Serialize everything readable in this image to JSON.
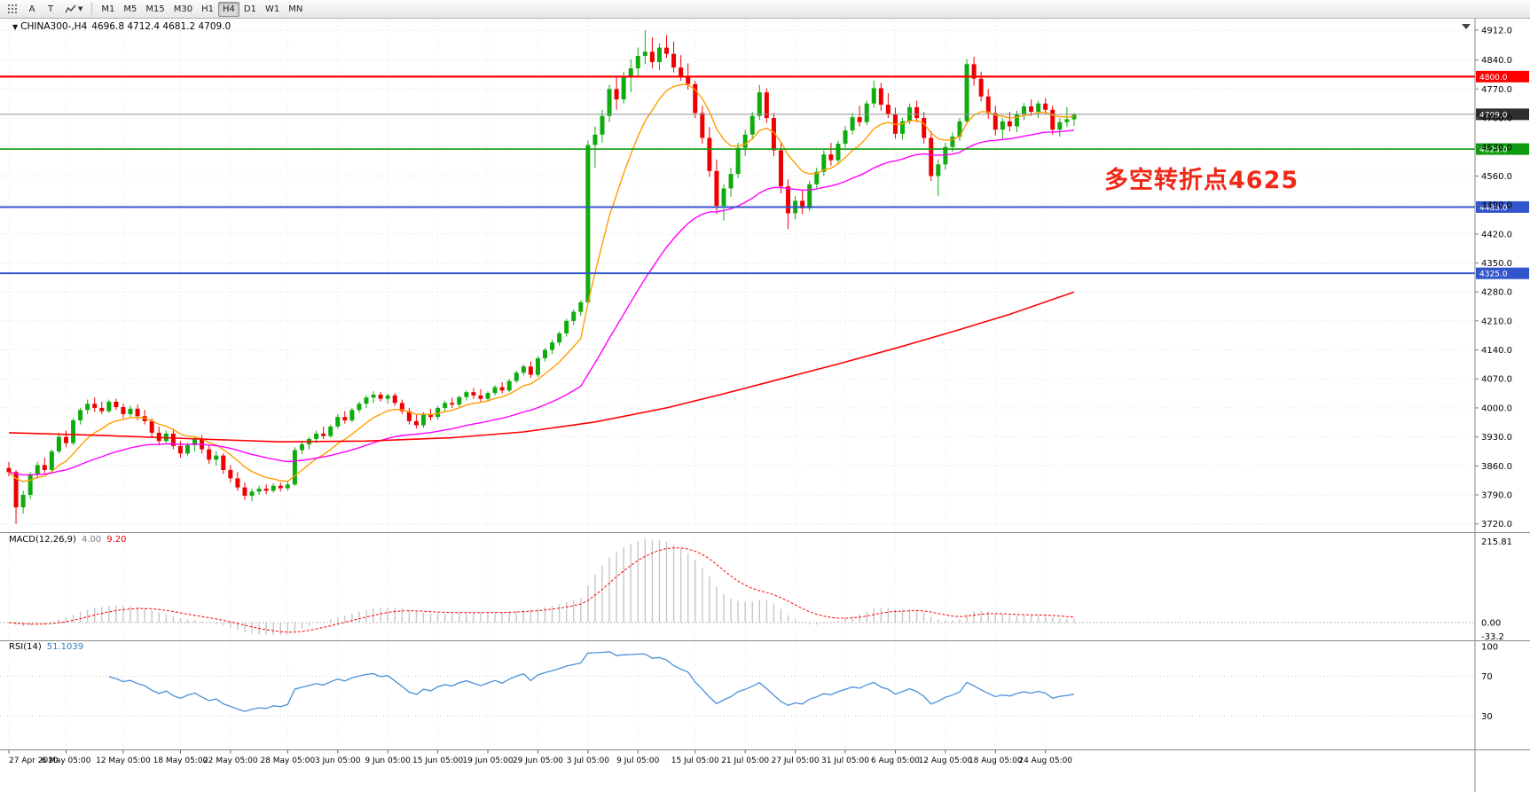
{
  "toolbar": {
    "tools": {
      "pointer_label": "A",
      "text_label": "T"
    },
    "timeframes": [
      "M1",
      "M5",
      "M15",
      "M30",
      "H1",
      "H4",
      "D1",
      "W1",
      "MN"
    ],
    "active_timeframe": "H4"
  },
  "main_chart": {
    "marker": "▼",
    "title": "CHINA300-,H4",
    "ohlc": "4696.8 4712.4 4681.2 4709.0",
    "annotation": {
      "text": "多空转折点4625",
      "color": "#f02818"
    }
  },
  "macd_panel": {
    "label": "MACD(12,26,9)",
    "value_main": "4.00",
    "value_signal": "9.20",
    "axis_top": "215.81",
    "axis_zero": "0.00",
    "axis_bottom": "-33.2"
  },
  "rsi_panel": {
    "label": "RSI(14)",
    "value": "51.1039",
    "axis_labels": [
      "100",
      "70",
      "30"
    ],
    "axis_values": [
      100,
      70,
      30
    ]
  },
  "chart_data": {
    "type": "candlestick",
    "symbol": "CHINA300-",
    "timeframe": "H4",
    "y_max": 4940,
    "y_min": 3700,
    "colors": {
      "up": "#0fab0f",
      "down": "#ee0000",
      "grid": "#dcdcdc",
      "axis_text": "#000000"
    },
    "price_axis_labels": [
      "4912.0",
      "4840.0",
      "4770.0",
      "4700.0",
      "4630.0",
      "4560.0",
      "4490.0",
      "4420.0",
      "4350.0",
      "4280.0",
      "4210.0",
      "4140.0",
      "4070.0",
      "4000.0",
      "3930.0",
      "3860.0",
      "3790.0",
      "3720.0"
    ],
    "levels": [
      {
        "price": 4800.0,
        "label": "4800.0",
        "color": "#ff0000",
        "badge_bg": "#ff0000",
        "width": 2.2
      },
      {
        "price": 4709.0,
        "label": "4709.0",
        "color": "#909090",
        "badge_bg": "#2e2e2e",
        "width": 1
      },
      {
        "price": 4625.0,
        "label": "4625.0",
        "color": "#0f9b0f",
        "badge_bg": "#0f9b0f",
        "width": 1.6
      },
      {
        "price": 4485.0,
        "label": "4485.0",
        "color": "#3355cc",
        "badge_bg": "#3355cc",
        "width": 2
      },
      {
        "price": 4325.0,
        "label": "4325.0",
        "color": "#3355cc",
        "badge_bg": "#3355cc",
        "width": 2
      }
    ],
    "moving_averages": [
      {
        "name": "ma-fast",
        "period": 10,
        "color": "#ff9d00"
      },
      {
        "name": "ma-slow",
        "period": 40,
        "color": "#ff00ff"
      }
    ],
    "trend_line": {
      "color": "#ff0000",
      "anchors": [
        [
          0,
          3940
        ],
        [
          12,
          3934
        ],
        [
          25,
          3926
        ],
        [
          38,
          3918
        ],
        [
          50,
          3920
        ],
        [
          62,
          3928
        ],
        [
          72,
          3942
        ],
        [
          82,
          3966
        ],
        [
          92,
          4000
        ],
        [
          100,
          4034
        ],
        [
          108,
          4070
        ],
        [
          116,
          4106
        ],
        [
          124,
          4144
        ],
        [
          132,
          4184
        ],
        [
          140,
          4226
        ],
        [
          149,
          4280
        ]
      ]
    },
    "macd": {
      "fast": 12,
      "slow": 26,
      "signal": 9,
      "hist_color": "#c6c6c6",
      "signal_color": "#ff0000"
    },
    "rsi": {
      "period": 14,
      "color": "#4a90d9",
      "level_lines": [
        70,
        30
      ]
    },
    "time_ticks": [
      {
        "i": 0,
        "label": "27 Apr 2020"
      },
      {
        "i": 8,
        "label": "6 May 05:00"
      },
      {
        "i": 16,
        "label": "12 May 05:00"
      },
      {
        "i": 24,
        "label": "18 May 05:00"
      },
      {
        "i": 31,
        "label": "22 May 05:00"
      },
      {
        "i": 39,
        "label": "28 May 05:00"
      },
      {
        "i": 46,
        "label": "3 Jun 05:00"
      },
      {
        "i": 53,
        "label": "9 Jun 05:00"
      },
      {
        "i": 60,
        "label": "15 Jun 05:00"
      },
      {
        "i": 67,
        "label": "19 Jun 05:00"
      },
      {
        "i": 74,
        "label": "29 Jun 05:00"
      },
      {
        "i": 81,
        "label": "3 Jul 05:00"
      },
      {
        "i": 88,
        "label": "9 Jul 05:00"
      },
      {
        "i": 96,
        "label": "15 Jul 05:00"
      },
      {
        "i": 103,
        "label": "21 Jul 05:00"
      },
      {
        "i": 110,
        "label": "27 Jul 05:00"
      },
      {
        "i": 117,
        "label": "31 Jul 05:00"
      },
      {
        "i": 124,
        "label": "6 Aug 05:00"
      },
      {
        "i": 131,
        "label": "12 Aug 05:00"
      },
      {
        "i": 138,
        "label": "18 Aug 05:00"
      },
      {
        "i": 145,
        "label": "24 Aug 05:00"
      }
    ],
    "candles": [
      [
        3855,
        3870,
        3835,
        3845
      ],
      [
        3845,
        3850,
        3720,
        3760
      ],
      [
        3760,
        3800,
        3745,
        3790
      ],
      [
        3790,
        3845,
        3780,
        3840
      ],
      [
        3840,
        3870,
        3830,
        3862
      ],
      [
        3862,
        3880,
        3840,
        3850
      ],
      [
        3850,
        3900,
        3845,
        3895
      ],
      [
        3895,
        3940,
        3890,
        3930
      ],
      [
        3930,
        3945,
        3905,
        3915
      ],
      [
        3915,
        3975,
        3910,
        3970
      ],
      [
        3970,
        4000,
        3960,
        3995
      ],
      [
        3995,
        4020,
        3985,
        4010
      ],
      [
        4010,
        4025,
        3990,
        4000
      ],
      [
        4000,
        4015,
        3985,
        3992
      ],
      [
        3992,
        4020,
        3988,
        4015
      ],
      [
        4015,
        4022,
        3995,
        4002
      ],
      [
        4002,
        4010,
        3975,
        3985
      ],
      [
        3985,
        4005,
        3978,
        3998
      ],
      [
        3998,
        4008,
        3970,
        3980
      ],
      [
        3980,
        3995,
        3960,
        3968
      ],
      [
        3968,
        3975,
        3930,
        3940
      ],
      [
        3940,
        3955,
        3910,
        3920
      ],
      [
        3920,
        3945,
        3915,
        3938
      ],
      [
        3938,
        3950,
        3900,
        3908
      ],
      [
        3908,
        3920,
        3880,
        3890
      ],
      [
        3890,
        3915,
        3885,
        3910
      ],
      [
        3910,
        3930,
        3895,
        3925
      ],
      [
        3925,
        3935,
        3890,
        3900
      ],
      [
        3900,
        3910,
        3865,
        3875
      ],
      [
        3875,
        3895,
        3860,
        3885
      ],
      [
        3885,
        3890,
        3840,
        3850
      ],
      [
        3850,
        3862,
        3820,
        3830
      ],
      [
        3830,
        3845,
        3800,
        3808
      ],
      [
        3808,
        3820,
        3778,
        3788
      ],
      [
        3788,
        3805,
        3775,
        3798
      ],
      [
        3798,
        3812,
        3790,
        3805
      ],
      [
        3805,
        3815,
        3792,
        3800
      ],
      [
        3800,
        3818,
        3795,
        3812
      ],
      [
        3812,
        3820,
        3798,
        3806
      ],
      [
        3806,
        3822,
        3800,
        3815
      ],
      [
        3815,
        3905,
        3812,
        3898
      ],
      [
        3898,
        3920,
        3888,
        3912
      ],
      [
        3912,
        3930,
        3900,
        3925
      ],
      [
        3925,
        3945,
        3915,
        3938
      ],
      [
        3938,
        3955,
        3925,
        3932
      ],
      [
        3932,
        3960,
        3928,
        3955
      ],
      [
        3955,
        3985,
        3950,
        3978
      ],
      [
        3978,
        3992,
        3962,
        3970
      ],
      [
        3970,
        4000,
        3965,
        3995
      ],
      [
        3995,
        4015,
        3988,
        4010
      ],
      [
        4010,
        4030,
        4000,
        4025
      ],
      [
        4025,
        4040,
        4012,
        4032
      ],
      [
        4032,
        4038,
        4015,
        4022
      ],
      [
        4022,
        4035,
        4010,
        4030
      ],
      [
        4030,
        4036,
        4005,
        4012
      ],
      [
        4012,
        4020,
        3985,
        3992
      ],
      [
        3992,
        4000,
        3960,
        3968
      ],
      [
        3968,
        3985,
        3950,
        3958
      ],
      [
        3958,
        3990,
        3952,
        3985
      ],
      [
        3985,
        3998,
        3970,
        3978
      ],
      [
        3978,
        4005,
        3972,
        4000
      ],
      [
        4000,
        4018,
        3992,
        4012
      ],
      [
        4012,
        4025,
        4000,
        4008
      ],
      [
        4008,
        4030,
        4002,
        4026
      ],
      [
        4026,
        4042,
        4018,
        4038
      ],
      [
        4038,
        4048,
        4022,
        4030
      ],
      [
        4030,
        4045,
        4015,
        4022
      ],
      [
        4022,
        4040,
        4016,
        4036
      ],
      [
        4036,
        4055,
        4030,
        4050
      ],
      [
        4050,
        4062,
        4035,
        4042
      ],
      [
        4042,
        4070,
        4038,
        4065
      ],
      [
        4065,
        4090,
        4060,
        4085
      ],
      [
        4085,
        4105,
        4078,
        4100
      ],
      [
        4100,
        4112,
        4072,
        4080
      ],
      [
        4080,
        4125,
        4075,
        4120
      ],
      [
        4120,
        4145,
        4112,
        4140
      ],
      [
        4140,
        4165,
        4130,
        4158
      ],
      [
        4158,
        4185,
        4150,
        4180
      ],
      [
        4180,
        4215,
        4172,
        4210
      ],
      [
        4210,
        4238,
        4200,
        4232
      ],
      [
        4232,
        4260,
        4222,
        4255
      ],
      [
        4255,
        4645,
        4250,
        4635
      ],
      [
        4635,
        4680,
        4580,
        4660
      ],
      [
        4660,
        4720,
        4640,
        4705
      ],
      [
        4705,
        4780,
        4690,
        4770
      ],
      [
        4770,
        4800,
        4720,
        4745
      ],
      [
        4745,
        4812,
        4735,
        4800
      ],
      [
        4800,
        4842,
        4762,
        4820
      ],
      [
        4820,
        4870,
        4800,
        4850
      ],
      [
        4850,
        4912,
        4830,
        4860
      ],
      [
        4860,
        4895,
        4820,
        4835
      ],
      [
        4835,
        4880,
        4815,
        4870
      ],
      [
        4870,
        4900,
        4845,
        4855
      ],
      [
        4855,
        4885,
        4810,
        4822
      ],
      [
        4822,
        4852,
        4790,
        4800
      ],
      [
        4800,
        4832,
        4768,
        4782
      ],
      [
        4782,
        4790,
        4700,
        4712
      ],
      [
        4712,
        4730,
        4638,
        4652
      ],
      [
        4652,
        4678,
        4558,
        4572
      ],
      [
        4572,
        4600,
        4468,
        4488
      ],
      [
        4488,
        4540,
        4452,
        4530
      ],
      [
        4530,
        4580,
        4510,
        4565
      ],
      [
        4565,
        4640,
        4555,
        4628
      ],
      [
        4628,
        4672,
        4608,
        4660
      ],
      [
        4660,
        4715,
        4648,
        4705
      ],
      [
        4705,
        4780,
        4695,
        4762
      ],
      [
        4762,
        4772,
        4688,
        4700
      ],
      [
        4700,
        4712,
        4608,
        4622
      ],
      [
        4622,
        4640,
        4518,
        4535
      ],
      [
        4535,
        4552,
        4432,
        4470
      ],
      [
        4470,
        4512,
        4455,
        4500
      ],
      [
        4500,
        4528,
        4468,
        4482
      ],
      [
        4482,
        4548,
        4475,
        4540
      ],
      [
        4540,
        4580,
        4528,
        4570
      ],
      [
        4570,
        4622,
        4560,
        4612
      ],
      [
        4612,
        4640,
        4585,
        4598
      ],
      [
        4598,
        4645,
        4590,
        4638
      ],
      [
        4638,
        4680,
        4628,
        4670
      ],
      [
        4670,
        4712,
        4660,
        4702
      ],
      [
        4702,
        4730,
        4680,
        4690
      ],
      [
        4690,
        4742,
        4682,
        4735
      ],
      [
        4735,
        4790,
        4725,
        4772
      ],
      [
        4772,
        4785,
        4718,
        4732
      ],
      [
        4732,
        4760,
        4700,
        4710
      ],
      [
        4710,
        4725,
        4650,
        4662
      ],
      [
        4662,
        4700,
        4648,
        4692
      ],
      [
        4692,
        4735,
        4685,
        4726
      ],
      [
        4726,
        4742,
        4690,
        4700
      ],
      [
        4700,
        4715,
        4638,
        4652
      ],
      [
        4652,
        4668,
        4548,
        4560
      ],
      [
        4560,
        4600,
        4512,
        4588
      ],
      [
        4588,
        4640,
        4575,
        4630
      ],
      [
        4630,
        4665,
        4618,
        4655
      ],
      [
        4655,
        4700,
        4645,
        4692
      ],
      [
        4692,
        4842,
        4685,
        4830
      ],
      [
        4830,
        4848,
        4778,
        4795
      ],
      [
        4795,
        4812,
        4740,
        4752
      ],
      [
        4752,
        4770,
        4698,
        4712
      ],
      [
        4712,
        4730,
        4658,
        4672
      ],
      [
        4672,
        4700,
        4648,
        4692
      ],
      [
        4692,
        4715,
        4668,
        4680
      ],
      [
        4680,
        4718,
        4666,
        4710
      ],
      [
        4710,
        4736,
        4695,
        4728
      ],
      [
        4728,
        4745,
        4705,
        4715
      ],
      [
        4715,
        4742,
        4700,
        4735
      ],
      [
        4735,
        4748,
        4710,
        4720
      ],
      [
        4720,
        4730,
        4660,
        4672
      ],
      [
        4672,
        4700,
        4655,
        4690
      ],
      [
        4690,
        4726,
        4678,
        4697
      ],
      [
        4696.8,
        4712.4,
        4681.2,
        4709.0
      ]
    ]
  }
}
